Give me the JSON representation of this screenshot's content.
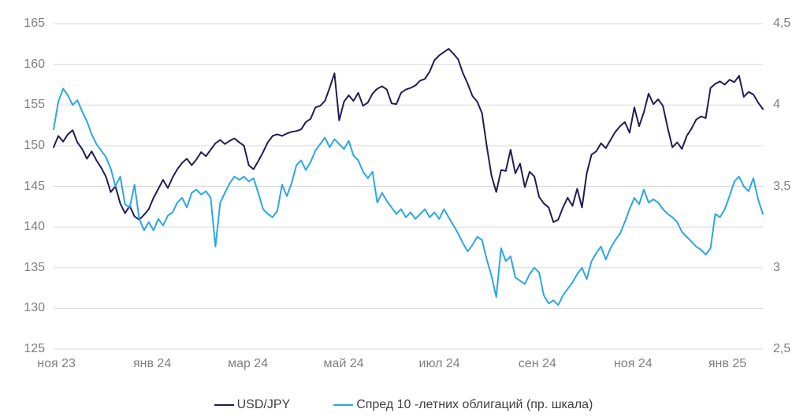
{
  "chart_data": {
    "type": "line",
    "title": "",
    "grid": "horizontal",
    "legend_position": "bottom-center",
    "background": "#ffffff",
    "gridline_color": "#d9d9d9",
    "axis_label_color": "#7f7f7f",
    "legend_text_color": "#3f3f3f",
    "left_axis": {
      "min": 125,
      "max": 165,
      "ticks": [
        "165",
        "160",
        "155",
        "150",
        "145",
        "140",
        "135",
        "130",
        "125"
      ]
    },
    "right_axis": {
      "min": 2.5,
      "max": 4.5,
      "ticks": [
        "4,5",
        "4",
        "3,5",
        "3",
        "2,5"
      ]
    },
    "x_ticks": [
      {
        "label": "ноя 23",
        "f": 0.004
      },
      {
        "label": "янв 24",
        "f": 0.139
      },
      {
        "label": "мар 24",
        "f": 0.274
      },
      {
        "label": "май 24",
        "f": 0.409
      },
      {
        "label": "июл 24",
        "f": 0.544
      },
      {
        "label": "сен 24",
        "f": 0.682
      },
      {
        "label": "ноя 24",
        "f": 0.817
      },
      {
        "label": "янв 25",
        "f": 0.95
      }
    ],
    "x_range_note": "ноя 2023 — фев 2025",
    "series": [
      {
        "name": "USD/JPY",
        "axis": "left",
        "color": "#201d52",
        "values": [
          149.8,
          151.2,
          150.5,
          151.4,
          151.9,
          150.4,
          149.6,
          148.4,
          149.3,
          148.2,
          147.3,
          146.2,
          144.3,
          145.0,
          142.9,
          141.7,
          142.6,
          141.3,
          140.9,
          141.5,
          142.2,
          143.6,
          144.7,
          145.8,
          144.8,
          146.1,
          147.1,
          147.9,
          148.4,
          147.6,
          148.3,
          149.2,
          148.7,
          149.5,
          150.3,
          150.7,
          150.2,
          150.6,
          150.9,
          150.4,
          150.0,
          147.6,
          147.1,
          148.1,
          149.2,
          150.4,
          151.2,
          151.4,
          151.2,
          151.5,
          151.7,
          151.8,
          152.0,
          152.9,
          153.3,
          154.7,
          154.9,
          155.5,
          157.1,
          158.9,
          153.1,
          155.4,
          156.2,
          155.5,
          156.5,
          154.9,
          155.3,
          156.4,
          157.0,
          157.3,
          156.9,
          155.2,
          155.1,
          156.5,
          156.9,
          157.1,
          157.4,
          158.0,
          158.2,
          159.1,
          160.5,
          161.1,
          161.5,
          161.9,
          161.3,
          160.6,
          158.9,
          157.6,
          156.1,
          155.4,
          154.0,
          149.9,
          146.3,
          144.3,
          147.0,
          146.9,
          149.5,
          146.6,
          147.8,
          144.9,
          146.8,
          146.2,
          143.7,
          142.9,
          142.4,
          140.6,
          140.9,
          142.4,
          143.6,
          142.6,
          144.7,
          142.4,
          146.6,
          148.9,
          149.3,
          150.3,
          149.7,
          150.7,
          151.7,
          152.4,
          152.9,
          151.6,
          154.7,
          152.4,
          154.1,
          156.4,
          155.1,
          155.7,
          154.9,
          152.2,
          149.8,
          150.4,
          149.6,
          151.2,
          152.1,
          153.2,
          153.6,
          153.4,
          157.1,
          157.6,
          157.9,
          157.5,
          158.1,
          157.8,
          158.6,
          156.0,
          156.6,
          156.3,
          155.3,
          154.5
        ]
      },
      {
        "name": "Спред 10 -летних облигаций (пр. шкала)",
        "axis": "right",
        "color": "#2aa7e1",
        "values": [
          3.85,
          4.02,
          4.1,
          4.06,
          4.0,
          4.03,
          3.96,
          3.9,
          3.82,
          3.76,
          3.72,
          3.68,
          3.61,
          3.5,
          3.56,
          3.39,
          3.37,
          3.51,
          3.3,
          3.23,
          3.28,
          3.23,
          3.3,
          3.26,
          3.32,
          3.34,
          3.4,
          3.43,
          3.37,
          3.46,
          3.48,
          3.45,
          3.47,
          3.43,
          3.13,
          3.4,
          3.46,
          3.52,
          3.56,
          3.54,
          3.56,
          3.53,
          3.55,
          3.46,
          3.36,
          3.33,
          3.31,
          3.35,
          3.51,
          3.44,
          3.52,
          3.63,
          3.66,
          3.6,
          3.65,
          3.72,
          3.76,
          3.8,
          3.74,
          3.79,
          3.76,
          3.73,
          3.78,
          3.69,
          3.66,
          3.59,
          3.55,
          3.59,
          3.4,
          3.46,
          3.41,
          3.37,
          3.33,
          3.36,
          3.31,
          3.34,
          3.3,
          3.33,
          3.36,
          3.31,
          3.34,
          3.3,
          3.36,
          3.31,
          3.26,
          3.21,
          3.15,
          3.1,
          3.14,
          3.19,
          3.17,
          3.05,
          2.95,
          2.82,
          3.12,
          3.04,
          3.07,
          2.94,
          2.92,
          2.9,
          2.96,
          3.0,
          2.97,
          2.83,
          2.78,
          2.8,
          2.77,
          2.83,
          2.87,
          2.91,
          2.96,
          3.0,
          2.93,
          3.04,
          3.09,
          3.13,
          3.05,
          3.12,
          3.17,
          3.21,
          3.28,
          3.36,
          3.43,
          3.39,
          3.48,
          3.4,
          3.42,
          3.4,
          3.36,
          3.33,
          3.31,
          3.28,
          3.22,
          3.19,
          3.16,
          3.13,
          3.11,
          3.08,
          3.12,
          3.33,
          3.31,
          3.36,
          3.44,
          3.53,
          3.56,
          3.5,
          3.47,
          3.55,
          3.42,
          3.33
        ]
      }
    ]
  }
}
